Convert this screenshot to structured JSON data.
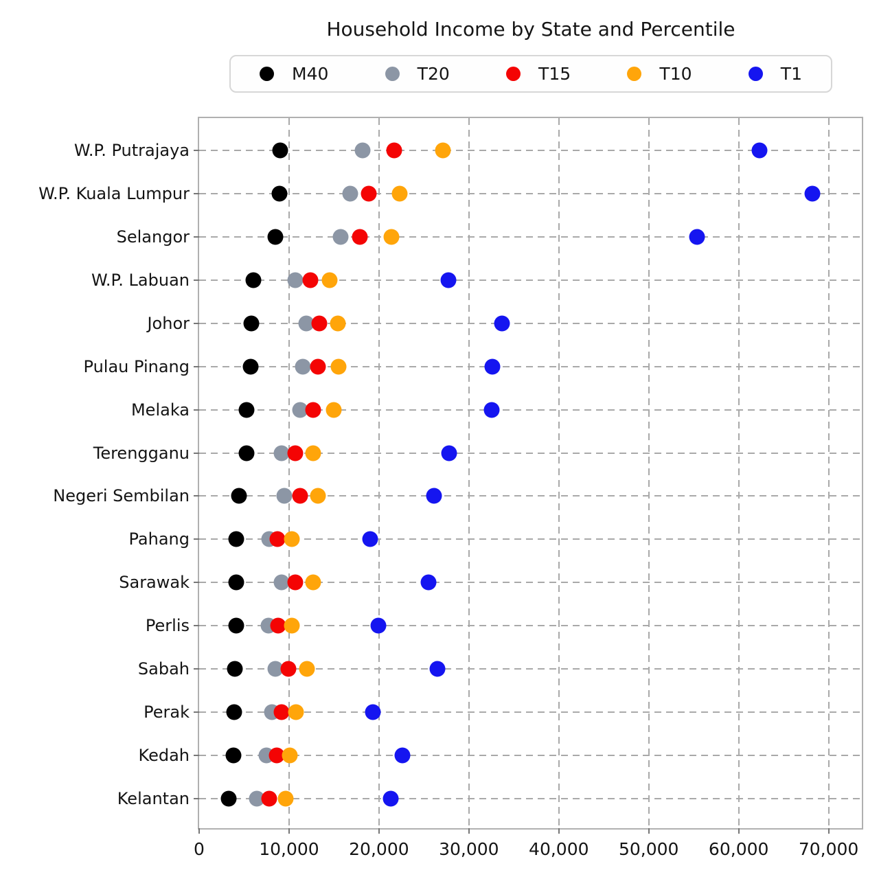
{
  "chart_data": {
    "type": "scatter",
    "variant": "horizontal-dot-plot",
    "title": "Household Income by State and Percentile",
    "xlabel": "",
    "ylabel": "",
    "grid": true,
    "legend_position": "top",
    "xlim": [
      0,
      74000
    ],
    "xticks": [
      0,
      10000,
      20000,
      30000,
      40000,
      50000,
      60000,
      70000
    ],
    "xtick_labels": [
      "0",
      "10,000",
      "20,000",
      "30,000",
      "40,000",
      "50,000",
      "60,000",
      "70,000"
    ],
    "categories": [
      "W.P. Putrajaya",
      "W.P. Kuala Lumpur",
      "Selangor",
      "W.P. Labuan",
      "Johor",
      "Pulau Pinang",
      "Melaka",
      "Terengganu",
      "Negeri Sembilan",
      "Pahang",
      "Sarawak",
      "Perlis",
      "Sabah",
      "Perak",
      "Kedah",
      "Kelantan"
    ],
    "series": [
      {
        "name": "M40",
        "color": "#000000",
        "values": [
          9000,
          8900,
          8500,
          6000,
          5800,
          5700,
          5300,
          5300,
          4400,
          4100,
          4100,
          4100,
          4000,
          3900,
          3800,
          3300
        ]
      },
      {
        "name": "T20",
        "color": "#8C96A5",
        "values": [
          18200,
          16800,
          15700,
          10700,
          11900,
          11500,
          11200,
          9200,
          9500,
          7800,
          9200,
          7700,
          8500,
          8100,
          7500,
          6400
        ]
      },
      {
        "name": "T15",
        "color": "#F40404",
        "values": [
          21700,
          18900,
          17900,
          12400,
          13400,
          13200,
          12700,
          10700,
          11200,
          8700,
          10700,
          8800,
          9900,
          9200,
          8600,
          7800
        ]
      },
      {
        "name": "T10",
        "color": "#FFA50A",
        "values": [
          27100,
          22300,
          21400,
          14500,
          15400,
          15500,
          15000,
          12700,
          13200,
          10300,
          12700,
          10300,
          12000,
          10800,
          10100,
          9600
        ]
      },
      {
        "name": "T1",
        "color": "#1515F0",
        "values": [
          62300,
          68200,
          55400,
          27700,
          33700,
          32600,
          32500,
          27800,
          26100,
          19000,
          25500,
          19900,
          26500,
          19300,
          22600,
          21300
        ]
      }
    ]
  }
}
